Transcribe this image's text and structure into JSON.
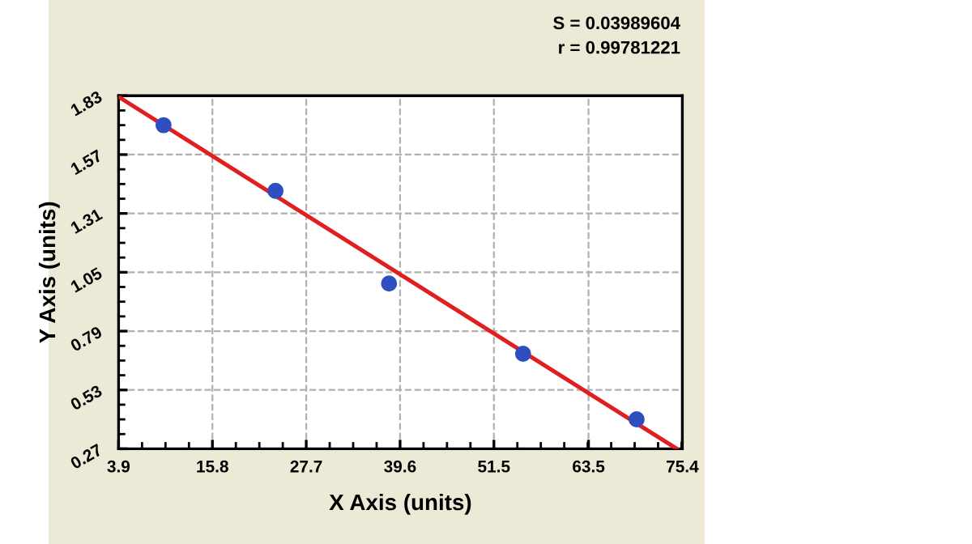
{
  "chart_data": {
    "type": "scatter",
    "xlabel": "X Axis (units)",
    "ylabel": "Y Axis (units)",
    "annotations": [
      "S = 0.03989604",
      "r = 0.99781221"
    ],
    "series": [
      {
        "color": "#2f4fc0",
        "x": [
          9.6,
          23.8,
          38.2,
          55.2,
          69.6
        ],
        "values": [
          1.7,
          1.41,
          1.0,
          0.69,
          0.4
        ],
        "marker": "circle"
      },
      {
        "type": "line",
        "color": "#e02020",
        "x": [
          3.9,
          74.7
        ],
        "values": [
          1.825,
          0.27
        ],
        "line_style": "solid"
      }
    ],
    "xlim": [
      3.9,
      75.4
    ],
    "xticks": [
      3.9,
      15.8,
      27.7,
      39.6,
      51.5,
      63.5,
      75.4
    ],
    "ylim": [
      0.27,
      1.83
    ],
    "yticks": [
      0.27,
      0.53,
      0.79,
      1.05,
      1.31,
      1.57,
      1.83
    ],
    "grid": true
  }
}
